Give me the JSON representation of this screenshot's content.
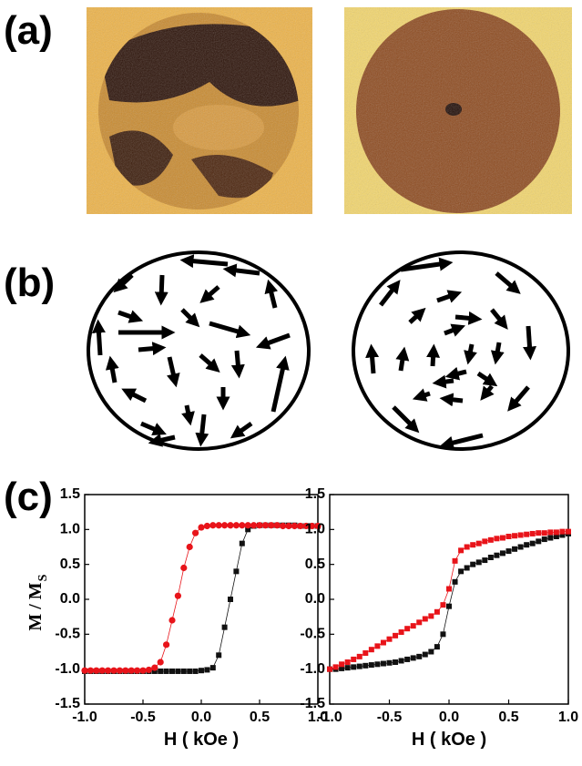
{
  "panel_labels": [
    "(a)",
    "(b)",
    "(c)"
  ],
  "chart_data": [
    {
      "type": "line",
      "xlabel": "H ( kOe )",
      "ylabel": "M / M",
      "ylabel_subscript": "S",
      "xlim": [
        -1,
        1
      ],
      "ylim": [
        -1.5,
        1.5
      ],
      "xticks": [
        {
          "value": -1,
          "label": "-1.0"
        },
        -0.5,
        {
          "value": 0,
          "label": "0.0"
        },
        0.5,
        {
          "value": 1,
          "label": "1.0"
        }
      ],
      "yticks": [
        -1.5,
        {
          "value": -1,
          "label": "-1.0"
        },
        -0.5,
        {
          "value": 0,
          "label": "0.0"
        },
        0.5,
        {
          "value": 1,
          "label": "1.0"
        },
        1.5
      ],
      "x": [
        -1,
        -0.95,
        -0.9,
        -0.85,
        -0.8,
        -0.75,
        -0.7,
        -0.65,
        -0.6,
        -0.55,
        -0.5,
        -0.45,
        -0.4,
        -0.35,
        -0.3,
        -0.25,
        -0.2,
        -0.15,
        -0.1,
        -0.05,
        0,
        0.05,
        0.1,
        0.15,
        0.2,
        0.25,
        0.3,
        0.35,
        0.4,
        0.45,
        0.5,
        0.55,
        0.6,
        0.65,
        0.7,
        0.75,
        0.8,
        0.85,
        0.9,
        0.95,
        1
      ],
      "series": [
        {
          "color": "#111111",
          "marker": "square",
          "values": [
            -1.03,
            -1.03,
            -1.03,
            -1.03,
            -1.03,
            -1.03,
            -1.03,
            -1.03,
            -1.03,
            -1.03,
            -1.03,
            -1.03,
            -1.03,
            -1.03,
            -1.03,
            -1.03,
            -1.03,
            -1.03,
            -1.03,
            -1.03,
            -1.02,
            -1.01,
            -0.98,
            -0.8,
            -0.4,
            0.0,
            0.4,
            0.8,
            1.0,
            1.05,
            1.06,
            1.06,
            1.06,
            1.06,
            1.06,
            1.06,
            1.06,
            1.05,
            1.05,
            1.05,
            1.05
          ]
        },
        {
          "color": "#e8141a",
          "marker": "circle",
          "values": [
            -1.02,
            -1.02,
            -1.02,
            -1.02,
            -1.02,
            -1.02,
            -1.02,
            -1.02,
            -1.02,
            -1.02,
            -1.02,
            -1.01,
            -0.98,
            -0.9,
            -0.65,
            -0.3,
            0.05,
            0.45,
            0.75,
            0.95,
            1.03,
            1.05,
            1.06,
            1.06,
            1.06,
            1.06,
            1.06,
            1.06,
            1.06,
            1.06,
            1.06,
            1.06,
            1.06,
            1.06,
            1.05,
            1.05,
            1.05,
            1.05,
            1.05,
            1.05,
            1.05
          ]
        }
      ]
    },
    {
      "type": "line",
      "xlabel": "H ( kOe )",
      "xlim": [
        -1,
        1
      ],
      "ylim": [
        -1.5,
        1.5
      ],
      "xticks": [
        {
          "value": -1,
          "label": "-1.0"
        },
        -0.5,
        {
          "value": 0,
          "label": "0.0"
        },
        0.5,
        {
          "value": 1,
          "label": "1.0"
        }
      ],
      "yticks": [
        -1.5,
        {
          "value": -1,
          "label": "-1.0"
        },
        -0.5,
        {
          "value": 0,
          "label": "0.0"
        },
        0.5,
        {
          "value": 1,
          "label": "1.0"
        },
        1.5
      ],
      "x": [
        -1,
        -0.95,
        -0.9,
        -0.85,
        -0.8,
        -0.75,
        -0.7,
        -0.65,
        -0.6,
        -0.55,
        -0.5,
        -0.45,
        -0.4,
        -0.35,
        -0.3,
        -0.25,
        -0.2,
        -0.15,
        -0.1,
        -0.05,
        0,
        0.05,
        0.1,
        0.15,
        0.2,
        0.25,
        0.3,
        0.35,
        0.4,
        0.45,
        0.5,
        0.55,
        0.6,
        0.65,
        0.7,
        0.75,
        0.8,
        0.85,
        0.9,
        0.95,
        1
      ],
      "series": [
        {
          "color": "#111111",
          "marker": "square",
          "values": [
            -1.0,
            -1.0,
            -0.99,
            -0.98,
            -0.97,
            -0.96,
            -0.95,
            -0.94,
            -0.93,
            -0.92,
            -0.91,
            -0.9,
            -0.88,
            -0.86,
            -0.84,
            -0.82,
            -0.79,
            -0.75,
            -0.68,
            -0.5,
            -0.1,
            0.25,
            0.4,
            0.45,
            0.5,
            0.53,
            0.56,
            0.6,
            0.63,
            0.66,
            0.69,
            0.72,
            0.75,
            0.78,
            0.8,
            0.83,
            0.86,
            0.88,
            0.9,
            0.92,
            0.94
          ]
        },
        {
          "color": "#e8141a",
          "marker": "square",
          "values": [
            -1.0,
            -0.97,
            -0.93,
            -0.9,
            -0.86,
            -0.82,
            -0.77,
            -0.72,
            -0.67,
            -0.62,
            -0.57,
            -0.52,
            -0.47,
            -0.42,
            -0.38,
            -0.33,
            -0.28,
            -0.24,
            -0.18,
            -0.08,
            0.15,
            0.55,
            0.7,
            0.75,
            0.78,
            0.8,
            0.83,
            0.85,
            0.87,
            0.88,
            0.9,
            0.91,
            0.92,
            0.93,
            0.94,
            0.95,
            0.95,
            0.96,
            0.96,
            0.97,
            0.97
          ]
        }
      ]
    }
  ]
}
